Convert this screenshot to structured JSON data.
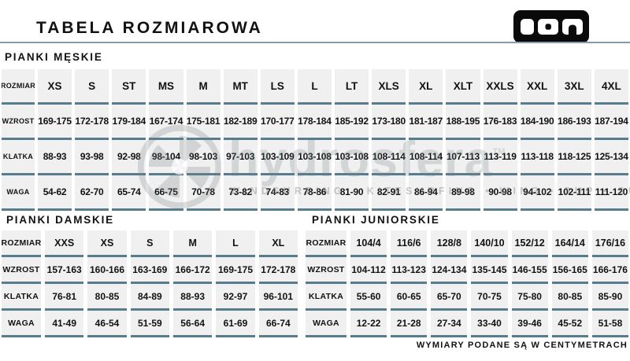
{
  "header": {
    "title": "TABELA ROZMIAROWA",
    "brand_logo": "ION"
  },
  "tables": {
    "men": {
      "section_label": "PIANKI MĘSKIE",
      "rows": [
        {
          "label": "ROZMIAR",
          "values": [
            "XS",
            "S",
            "ST",
            "MS",
            "M",
            "MT",
            "LS",
            "L",
            "LT",
            "XLS",
            "XL",
            "XLT",
            "XXLS",
            "XXL",
            "3XL",
            "4XL"
          ]
        },
        {
          "label": "WZROST",
          "values": [
            "169-175",
            "172-178",
            "179-184",
            "167-174",
            "175-181",
            "182-189",
            "170-177",
            "178-184",
            "185-192",
            "173-180",
            "181-187",
            "188-195",
            "176-183",
            "184-190",
            "186-193",
            "187-194"
          ]
        },
        {
          "label": "KLATKA",
          "values": [
            "88-93",
            "93-98",
            "92-98",
            "98-104",
            "98-103",
            "97-103",
            "103-109",
            "103-108",
            "103-108",
            "108-114",
            "108-114",
            "107-113",
            "113-119",
            "113-118",
            "118-125",
            "125-134"
          ]
        },
        {
          "label": "WAGA",
          "values": [
            "54-62",
            "62-70",
            "65-74",
            "66-75",
            "70-78",
            "73-82",
            "74-83",
            "78-86",
            "81-90",
            "82-91",
            "86-94",
            "89-98",
            "90-98",
            "94-102",
            "102-111",
            "111-120"
          ]
        }
      ]
    },
    "women": {
      "section_label": "PIANKI DAMSKIE",
      "rows": [
        {
          "label": "ROZMIAR",
          "values": [
            "XXS",
            "XS",
            "S",
            "M",
            "L",
            "XL"
          ]
        },
        {
          "label": "WZROST",
          "values": [
            "157-163",
            "160-166",
            "163-169",
            "166-172",
            "169-175",
            "172-178"
          ]
        },
        {
          "label": "KLATKA",
          "values": [
            "76-81",
            "80-85",
            "84-89",
            "88-93",
            "92-97",
            "96-101"
          ]
        },
        {
          "label": "WAGA",
          "values": [
            "41-49",
            "46-54",
            "51-59",
            "56-64",
            "61-69",
            "66-74"
          ]
        }
      ]
    },
    "junior": {
      "section_label": "PIANKI JUNIORSKIE",
      "rows": [
        {
          "label": "ROZMIAR",
          "values": [
            "104/4",
            "116/6",
            "128/8",
            "140/10",
            "152/12",
            "164/14",
            "176/16"
          ]
        },
        {
          "label": "WZROST",
          "values": [
            "104-112",
            "113-123",
            "124-134",
            "135-145",
            "146-155",
            "156-165",
            "166-176"
          ]
        },
        {
          "label": "KLATKA",
          "values": [
            "55-60",
            "60-65",
            "65-70",
            "70-75",
            "75-80",
            "80-85",
            "85-90"
          ]
        },
        {
          "label": "WAGA",
          "values": [
            "12-22",
            "21-28",
            "27-34",
            "33-40",
            "39-46",
            "45-52",
            "51-58"
          ]
        }
      ]
    }
  },
  "watermark": {
    "brand": "hydrosfera",
    "tm": "TM",
    "tagline": "WINDSURFING • KITESURFING • WING • SUP • SURF"
  },
  "footer": {
    "note": "WYMIARY PODANE SĄ W CENTYMETRACH"
  },
  "colors": {
    "row_line": "#567c8e",
    "header_line": "#7f9dad",
    "cell_bg": "#f0f0f0",
    "text": "#121212"
  }
}
